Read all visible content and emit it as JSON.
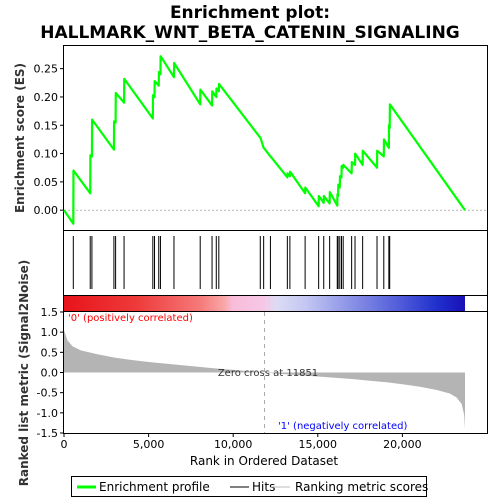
{
  "chart_data": {
    "type": "line",
    "title_line1": "Enrichment plot:",
    "title_line2": "HALLMARK_WNT_BETA_CATENIN_SIGNALING",
    "ylabel_top": "Enrichment score (ES)",
    "ylabel_bottom": "Ranked list metric (Signal2Noise)",
    "xlabel": "Rank in Ordered Dataset",
    "x_max": 23700,
    "xlim": [
      0,
      25000
    ],
    "x_ticks": [
      0,
      5000,
      10000,
      15000,
      20000
    ],
    "x_tick_labels": [
      "0",
      "5,000",
      "10,000",
      "15,000",
      "20,000"
    ],
    "es_ylim": [
      -0.035,
      0.29
    ],
    "es_ticks": [
      0.0,
      0.05,
      0.1,
      0.15,
      0.2,
      0.25
    ],
    "es_tick_labels": [
      "0.00",
      "0.05",
      "0.10",
      "0.15",
      "0.20",
      "0.25"
    ],
    "metric_ylim": [
      -1.5,
      1.5
    ],
    "metric_ticks": [
      1.5,
      1.0,
      0.5,
      0.0,
      -0.5,
      -1.0,
      -1.5
    ],
    "metric_tick_labels": [
      "1.5",
      "1.0",
      "0.5",
      "0.0",
      "-0.5",
      "-1.0",
      "-1.5"
    ],
    "hits": [
      550,
      1550,
      1650,
      2950,
      3050,
      3550,
      5250,
      5350,
      5600,
      5700,
      6500,
      8050,
      8750,
      9000,
      9150,
      11600,
      11800,
      12200,
      13200,
      13350,
      14250,
      15050,
      15350,
      15700,
      16150,
      16200,
      16300,
      16400,
      16500,
      17000,
      17200,
      17650,
      18500,
      18900,
      19200,
      19250
    ],
    "es_curve": {
      "x": [
        0,
        550,
        560,
        1550,
        1560,
        1650,
        1660,
        2950,
        2960,
        3050,
        3060,
        3550,
        3560,
        5250,
        5260,
        5350,
        5360,
        5600,
        5610,
        5700,
        5710,
        6500,
        6510,
        8050,
        8060,
        8750,
        8760,
        9000,
        9010,
        9150,
        9160,
        11600,
        11610,
        11800,
        11810,
        12200,
        12210,
        13200,
        13210,
        13350,
        13360,
        14250,
        14260,
        15050,
        15060,
        15350,
        15360,
        15700,
        15710,
        16150,
        16160,
        16200,
        16210,
        16300,
        16310,
        16400,
        16410,
        16500,
        16510,
        17000,
        17010,
        17200,
        17210,
        17650,
        17660,
        18500,
        18510,
        18900,
        18910,
        19200,
        19210,
        19250,
        19260,
        23700
      ],
      "y": [
        0.0,
        -0.024,
        0.07,
        0.03,
        0.097,
        0.095,
        0.16,
        0.107,
        0.157,
        0.155,
        0.207,
        0.19,
        0.232,
        0.162,
        0.203,
        0.2,
        0.228,
        0.22,
        0.244,
        0.24,
        0.272,
        0.235,
        0.26,
        0.187,
        0.213,
        0.185,
        0.21,
        0.2,
        0.215,
        0.21,
        0.223,
        0.128,
        0.128,
        0.11,
        0.11,
        0.095,
        0.095,
        0.058,
        0.065,
        0.06,
        0.068,
        0.03,
        0.04,
        0.007,
        0.025,
        0.013,
        0.025,
        0.012,
        0.032,
        0.008,
        0.028,
        0.025,
        0.045,
        0.04,
        0.06,
        0.058,
        0.078,
        0.075,
        0.08,
        0.065,
        0.085,
        0.08,
        0.1,
        0.08,
        0.105,
        0.075,
        0.105,
        0.095,
        0.125,
        0.11,
        0.15,
        0.145,
        0.187,
        0.0
      ]
    },
    "metric_curve": {
      "x": [
        0,
        200,
        500,
        1000,
        2000,
        3000,
        4000,
        5000,
        6000,
        7000,
        8000,
        9000,
        10000,
        11000,
        11851,
        13000,
        14000,
        15000,
        16000,
        17000,
        18000,
        19000,
        20000,
        21000,
        22000,
        22800,
        23200,
        23500,
        23650,
        23700
      ],
      "y": [
        1.05,
        0.8,
        0.65,
        0.55,
        0.45,
        0.37,
        0.31,
        0.26,
        0.22,
        0.18,
        0.14,
        0.1,
        0.065,
        0.03,
        0.0,
        -0.04,
        -0.07,
        -0.1,
        -0.13,
        -0.16,
        -0.2,
        -0.24,
        -0.29,
        -0.35,
        -0.43,
        -0.52,
        -0.62,
        -0.78,
        -1.05,
        -1.4
      ]
    },
    "zero_cross_label": "Zero cross at 11851",
    "pos_label": "'0' (positively correlated)",
    "neg_label": "'1' (negatively correlated)",
    "legend": [
      {
        "label": "Enrichment profile",
        "color": "#00ff00"
      },
      {
        "label": "Hits",
        "color": "#000000"
      },
      {
        "label": "Ranking metric scores",
        "color": "#bbbbbb"
      }
    ],
    "colors": {
      "es_line": "#00ff00",
      "metric_fill": "#b4b4b4",
      "pos_text": "#ff0000",
      "neg_text": "#0000ff"
    }
  }
}
